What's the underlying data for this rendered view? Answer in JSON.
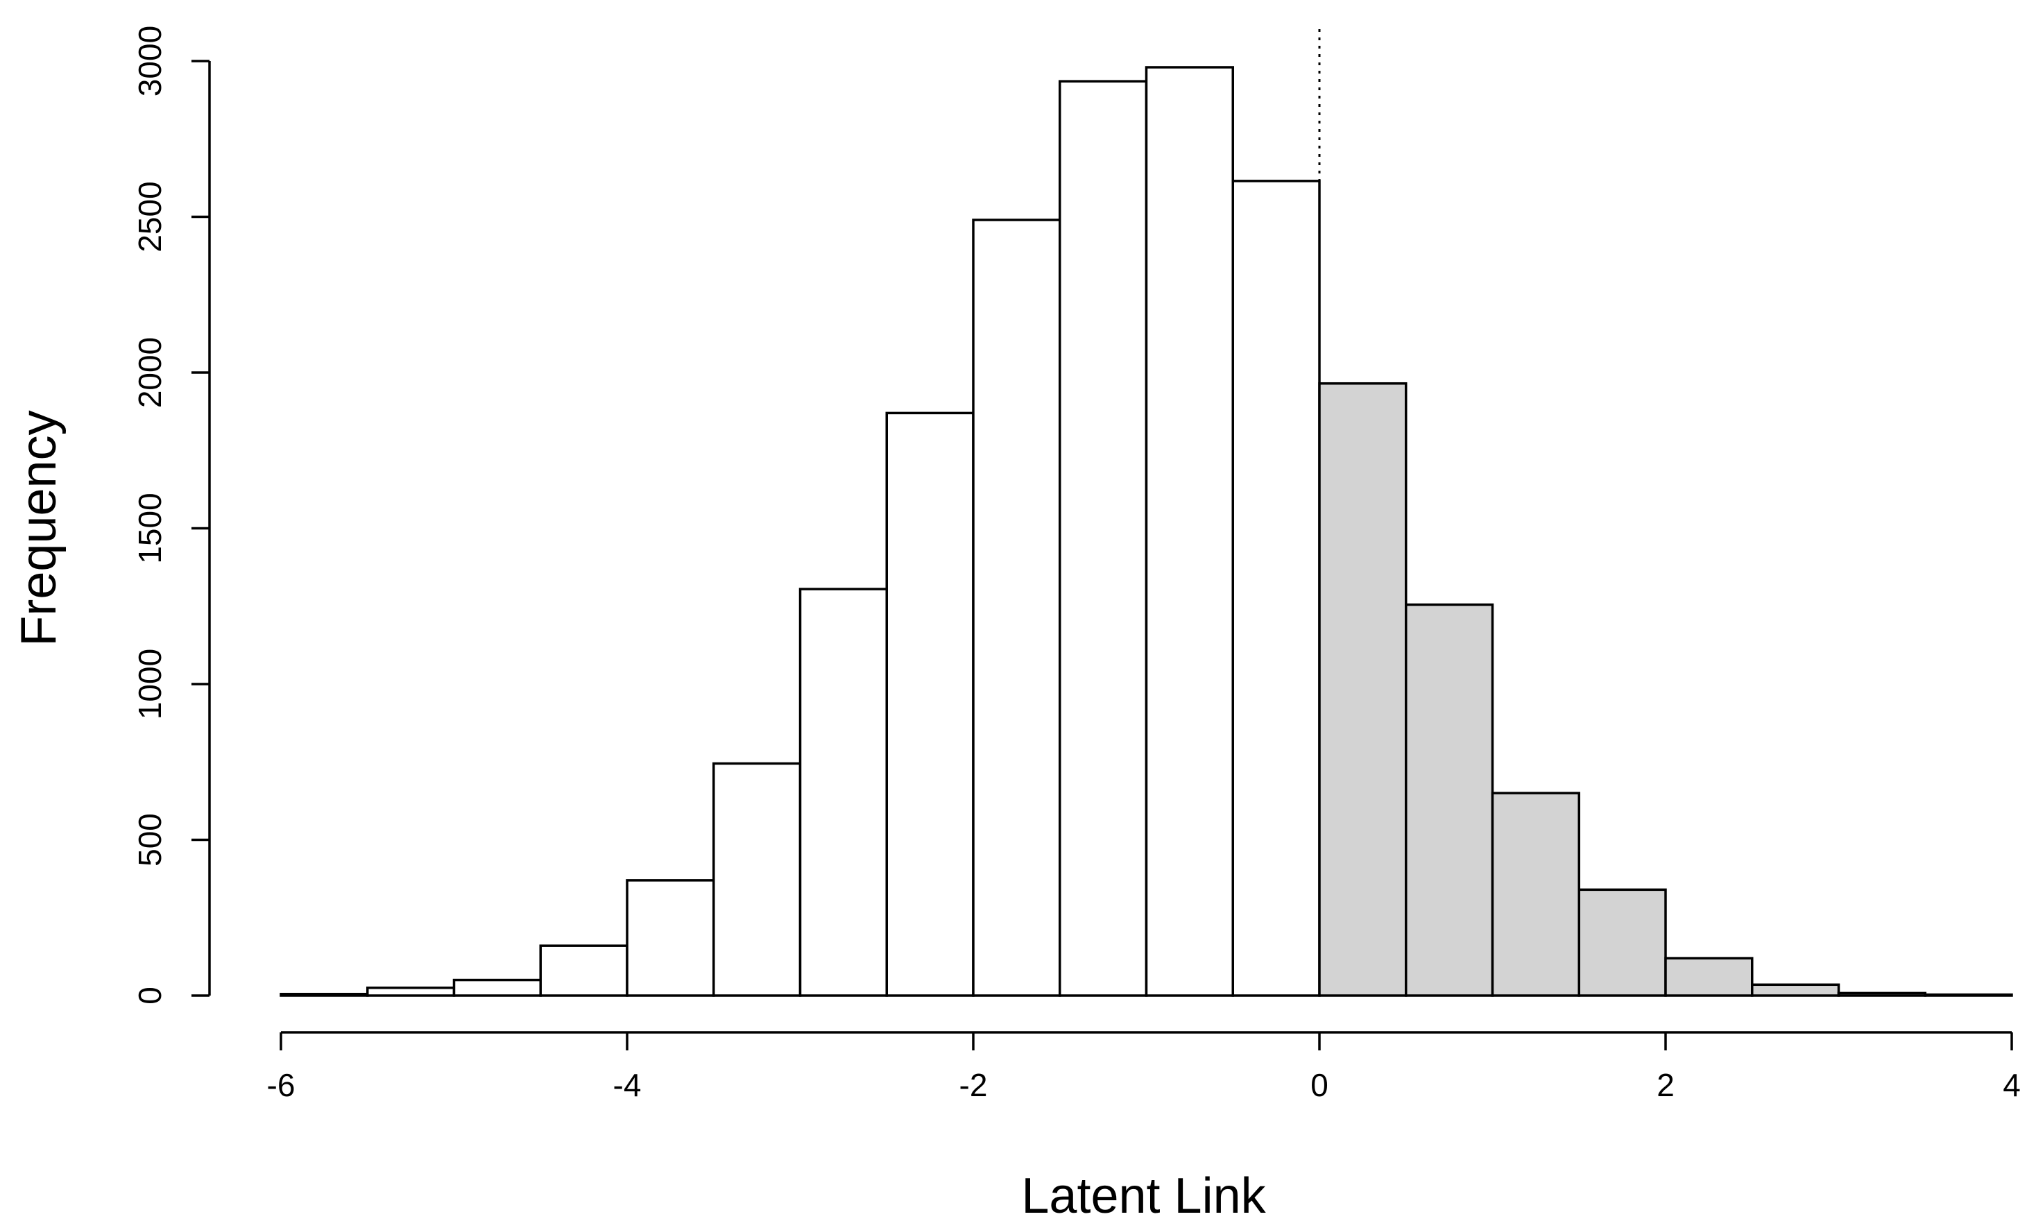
{
  "chart_data": {
    "type": "bar",
    "subtype": "histogram",
    "title": "",
    "xlabel": "Latent Link",
    "ylabel": "Frequency",
    "xlim": [
      -6,
      4
    ],
    "ylim": [
      0,
      3000
    ],
    "bin_width": 0.5,
    "bins": [
      {
        "x0": -6.0,
        "x1": -5.5,
        "value": 5
      },
      {
        "x0": -5.5,
        "x1": -5.0,
        "value": 25
      },
      {
        "x0": -5.0,
        "x1": -4.5,
        "value": 50
      },
      {
        "x0": -4.5,
        "x1": -4.0,
        "value": 160
      },
      {
        "x0": -4.0,
        "x1": -3.5,
        "value": 370
      },
      {
        "x0": -3.5,
        "x1": -3.0,
        "value": 745
      },
      {
        "x0": -3.0,
        "x1": -2.5,
        "value": 1305
      },
      {
        "x0": -2.5,
        "x1": -2.0,
        "value": 1870
      },
      {
        "x0": -2.0,
        "x1": -1.5,
        "value": 2490
      },
      {
        "x0": -1.5,
        "x1": -1.0,
        "value": 2935
      },
      {
        "x0": -1.0,
        "x1": -0.5,
        "value": 2980
      },
      {
        "x0": -0.5,
        "x1": 0.0,
        "value": 2615
      },
      {
        "x0": 0.0,
        "x1": 0.5,
        "value": 1965
      },
      {
        "x0": 0.5,
        "x1": 1.0,
        "value": 1255
      },
      {
        "x0": 1.0,
        "x1": 1.5,
        "value": 650
      },
      {
        "x0": 1.5,
        "x1": 2.0,
        "value": 340
      },
      {
        "x0": 2.0,
        "x1": 2.5,
        "value": 120
      },
      {
        "x0": 2.5,
        "x1": 3.0,
        "value": 35
      },
      {
        "x0": 3.0,
        "x1": 3.5,
        "value": 8
      },
      {
        "x0": 3.5,
        "x1": 4.0,
        "value": 3
      }
    ],
    "x_ticks": [
      "-6",
      "-4",
      "-2",
      "0",
      "2",
      "4"
    ],
    "y_ticks": [
      "0",
      "500",
      "1000",
      "1500",
      "2000",
      "2500",
      "3000"
    ],
    "reference_line": {
      "x": 0,
      "style": "dotted"
    },
    "shading": {
      "threshold": 0,
      "below_color": "#ffffff",
      "above_color": "#d3d3d3"
    },
    "bar_stroke": "#000000",
    "grid": false,
    "legend": "none"
  }
}
